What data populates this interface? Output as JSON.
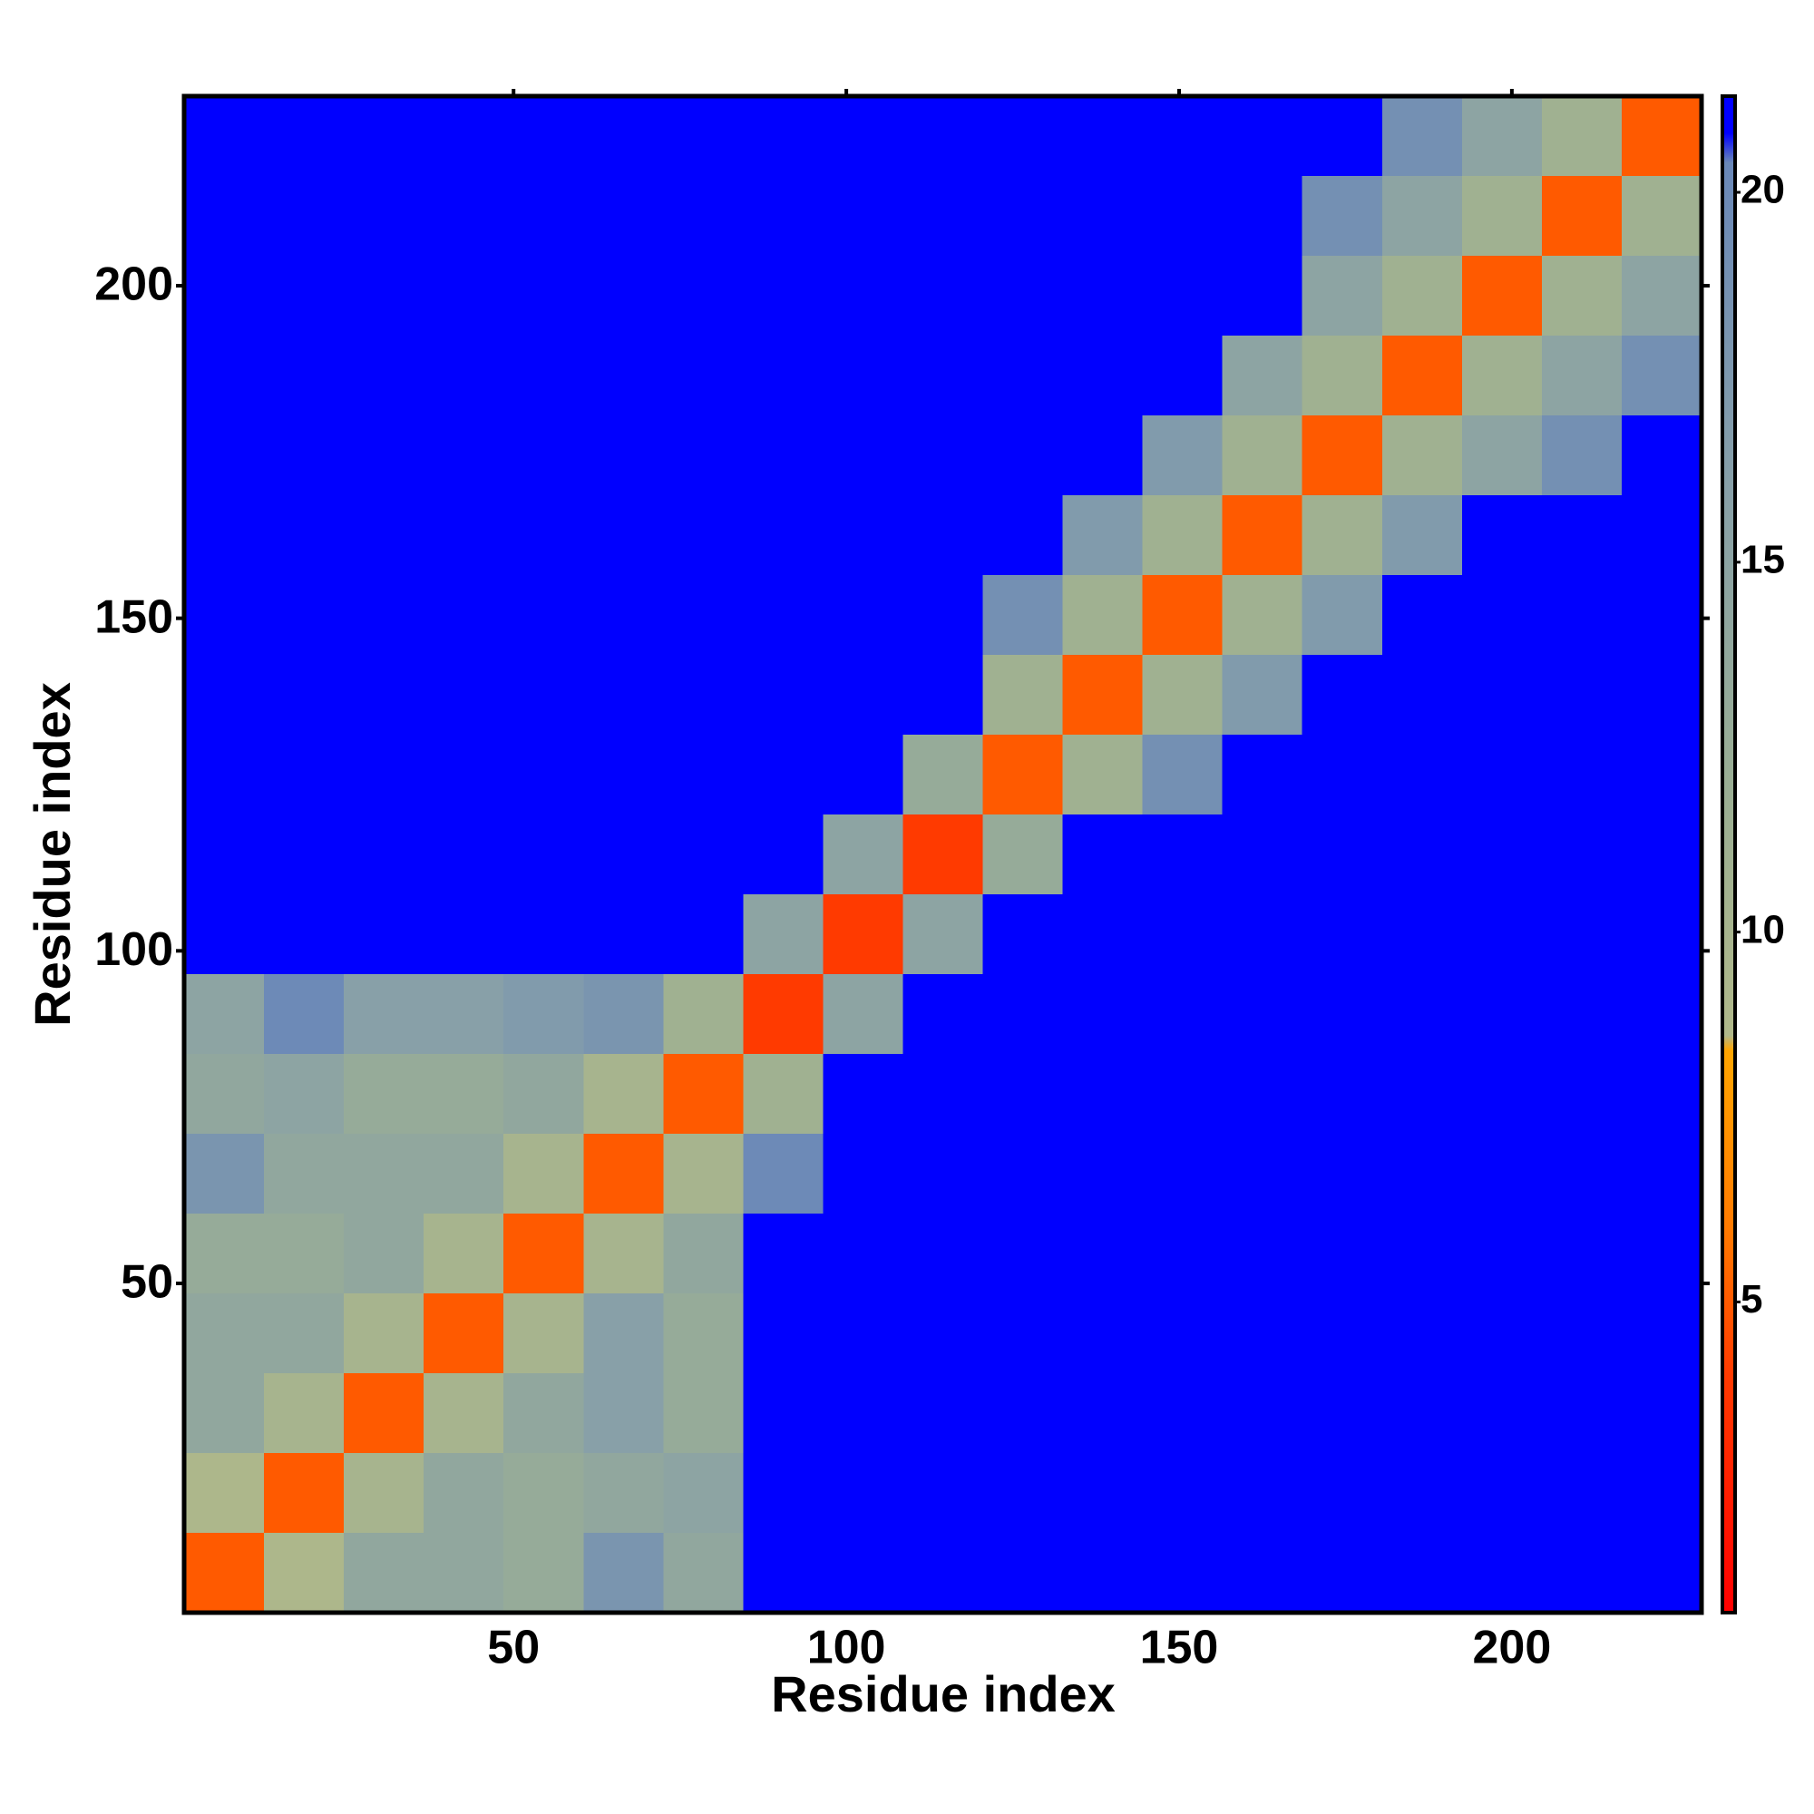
{
  "chart_data": {
    "type": "heatmap",
    "x_label": "Residue index",
    "y_label": "Residue index",
    "xlim": [
      0.5,
      228.5
    ],
    "ylim": [
      0.5,
      228.5
    ],
    "xticks": [
      50,
      100,
      150,
      200
    ],
    "yticks": [
      50,
      100,
      150,
      200
    ],
    "zlim": [
      0.8,
      21.3
    ],
    "zticks": [
      5,
      10,
      15,
      20
    ],
    "colorscale": [
      [
        0.8,
        "#ff0000"
      ],
      [
        4,
        "#ff3a00"
      ],
      [
        6,
        "#ff7a00"
      ],
      [
        8.4,
        "#ffa500"
      ],
      [
        8.6,
        "#b0b88a"
      ],
      [
        12,
        "#9aae94"
      ],
      [
        16,
        "#88a0a8"
      ],
      [
        20.4,
        "#6a88b8"
      ],
      [
        20.8,
        "#0000ff"
      ]
    ],
    "x": [
      6.5,
      18.5,
      30.5,
      42.5,
      54.5,
      66.5,
      78.5,
      90.5,
      102.5,
      114.5,
      126.5,
      138.5,
      150.5,
      162.5,
      174.5,
      186.5,
      198.5,
      210.5,
      222.5
    ],
    "y": [
      6.5,
      18.5,
      30.5,
      42.5,
      54.5,
      66.5,
      78.5,
      90.5,
      102.5,
      114.5,
      126.5,
      138.5,
      150.5,
      162.5,
      174.5,
      186.5,
      198.5,
      210.5,
      222.5
    ],
    "z": [
      [
        5,
        9,
        14,
        14,
        13,
        18,
        14,
        21,
        21,
        21,
        21,
        21,
        21,
        21,
        21,
        21,
        21,
        21,
        21
      ],
      [
        9,
        5,
        10,
        14,
        13,
        14,
        15,
        21,
        21,
        21,
        21,
        21,
        21,
        21,
        21,
        21,
        21,
        21,
        21
      ],
      [
        14,
        10,
        5,
        10,
        14,
        16,
        13,
        21,
        21,
        21,
        21,
        21,
        21,
        21,
        21,
        21,
        21,
        21,
        21
      ],
      [
        14,
        14,
        10,
        5,
        10,
        16,
        13,
        21,
        21,
        21,
        21,
        21,
        21,
        21,
        21,
        21,
        21,
        21,
        21
      ],
      [
        13,
        13,
        14,
        10,
        5,
        10,
        14,
        21,
        21,
        21,
        21,
        21,
        21,
        21,
        21,
        21,
        21,
        21,
        21
      ],
      [
        18,
        14,
        14,
        14,
        10,
        5,
        10,
        20,
        21,
        21,
        21,
        21,
        21,
        21,
        21,
        21,
        21,
        21,
        21
      ],
      [
        14,
        15,
        13,
        13,
        14,
        10,
        5,
        11,
        21,
        21,
        21,
        21,
        21,
        21,
        21,
        21,
        21,
        21,
        21
      ],
      [
        15,
        20,
        16,
        16,
        17,
        18,
        11,
        4,
        15,
        21,
        21,
        21,
        21,
        21,
        21,
        21,
        21,
        21,
        21
      ],
      [
        21,
        21,
        21,
        21,
        21,
        21,
        21,
        15,
        4,
        15,
        21,
        21,
        21,
        21,
        21,
        21,
        21,
        21,
        21
      ],
      [
        21,
        21,
        21,
        21,
        21,
        21,
        21,
        21,
        15,
        4,
        13,
        21,
        21,
        21,
        21,
        21,
        21,
        21,
        21
      ],
      [
        21,
        21,
        21,
        21,
        21,
        21,
        21,
        21,
        21,
        13,
        5,
        11,
        19,
        21,
        21,
        21,
        21,
        21,
        21
      ],
      [
        21,
        21,
        21,
        21,
        21,
        21,
        21,
        21,
        21,
        21,
        11,
        5,
        11,
        17,
        21,
        21,
        21,
        21,
        21
      ],
      [
        21,
        21,
        21,
        21,
        21,
        21,
        21,
        21,
        21,
        21,
        19,
        11,
        5,
        11,
        17,
        21,
        21,
        21,
        21
      ],
      [
        21,
        21,
        21,
        21,
        21,
        21,
        21,
        21,
        21,
        21,
        21,
        17,
        11,
        5,
        11,
        17,
        21,
        21,
        21
      ],
      [
        21,
        21,
        21,
        21,
        21,
        21,
        21,
        21,
        21,
        21,
        21,
        21,
        17,
        11,
        5,
        11,
        15,
        19,
        21
      ],
      [
        21,
        21,
        21,
        21,
        21,
        21,
        21,
        21,
        21,
        21,
        21,
        21,
        21,
        15,
        11,
        5,
        11,
        15,
        19
      ],
      [
        21,
        21,
        21,
        21,
        21,
        21,
        21,
        21,
        21,
        21,
        21,
        21,
        21,
        21,
        15,
        11,
        5,
        11,
        15
      ],
      [
        21,
        21,
        21,
        21,
        21,
        21,
        21,
        21,
        21,
        21,
        21,
        21,
        21,
        21,
        19,
        15,
        11,
        5,
        11
      ],
      [
        21,
        21,
        21,
        21,
        21,
        21,
        21,
        21,
        21,
        21,
        21,
        21,
        21,
        21,
        21,
        19,
        15,
        11,
        5
      ]
    ]
  }
}
